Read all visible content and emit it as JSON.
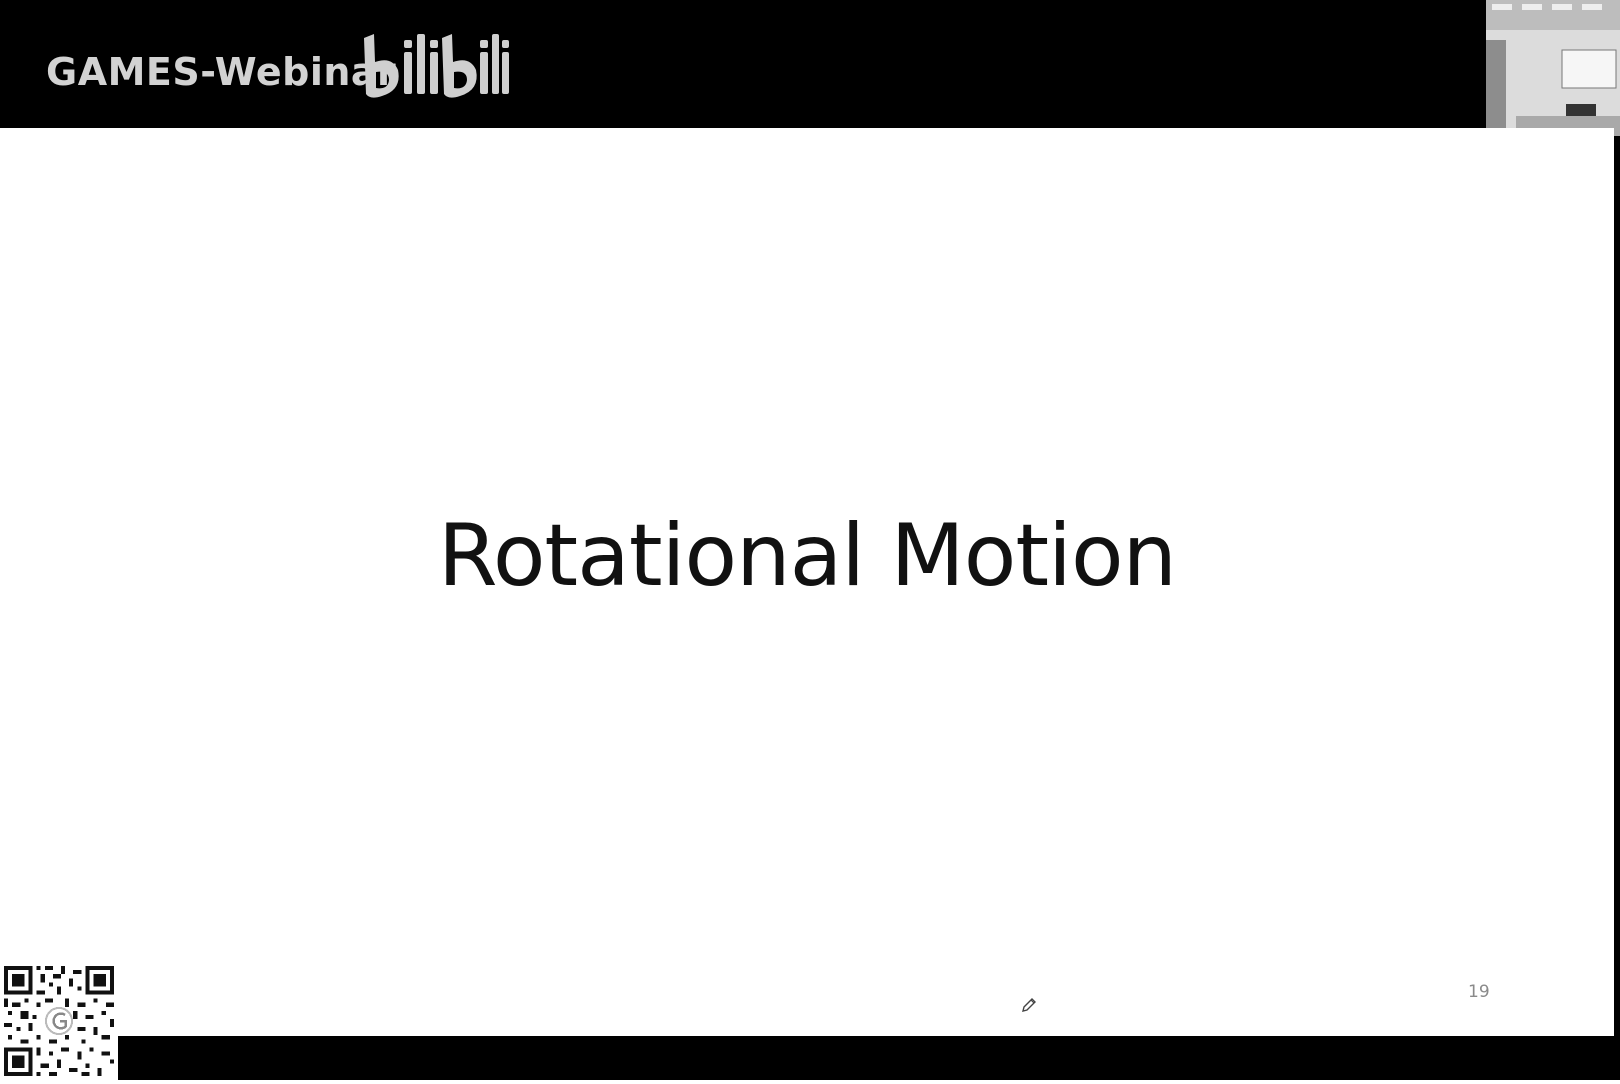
{
  "header": {
    "channel_name": "GAMES-Webinar",
    "platform_logo": "bilibili"
  },
  "slide": {
    "title": "Rotational Motion",
    "page_number": "19"
  },
  "icons": {
    "cursor": "pen-cursor-icon",
    "qr": "qr-code-icon",
    "camera": "presenter-camera-thumbnail"
  },
  "colors": {
    "banner": "#000000",
    "slide_background": "#ffffff",
    "title_text": "#111111",
    "channel_text": "#d2d2d2",
    "page_number_text": "#8a8a8a"
  }
}
